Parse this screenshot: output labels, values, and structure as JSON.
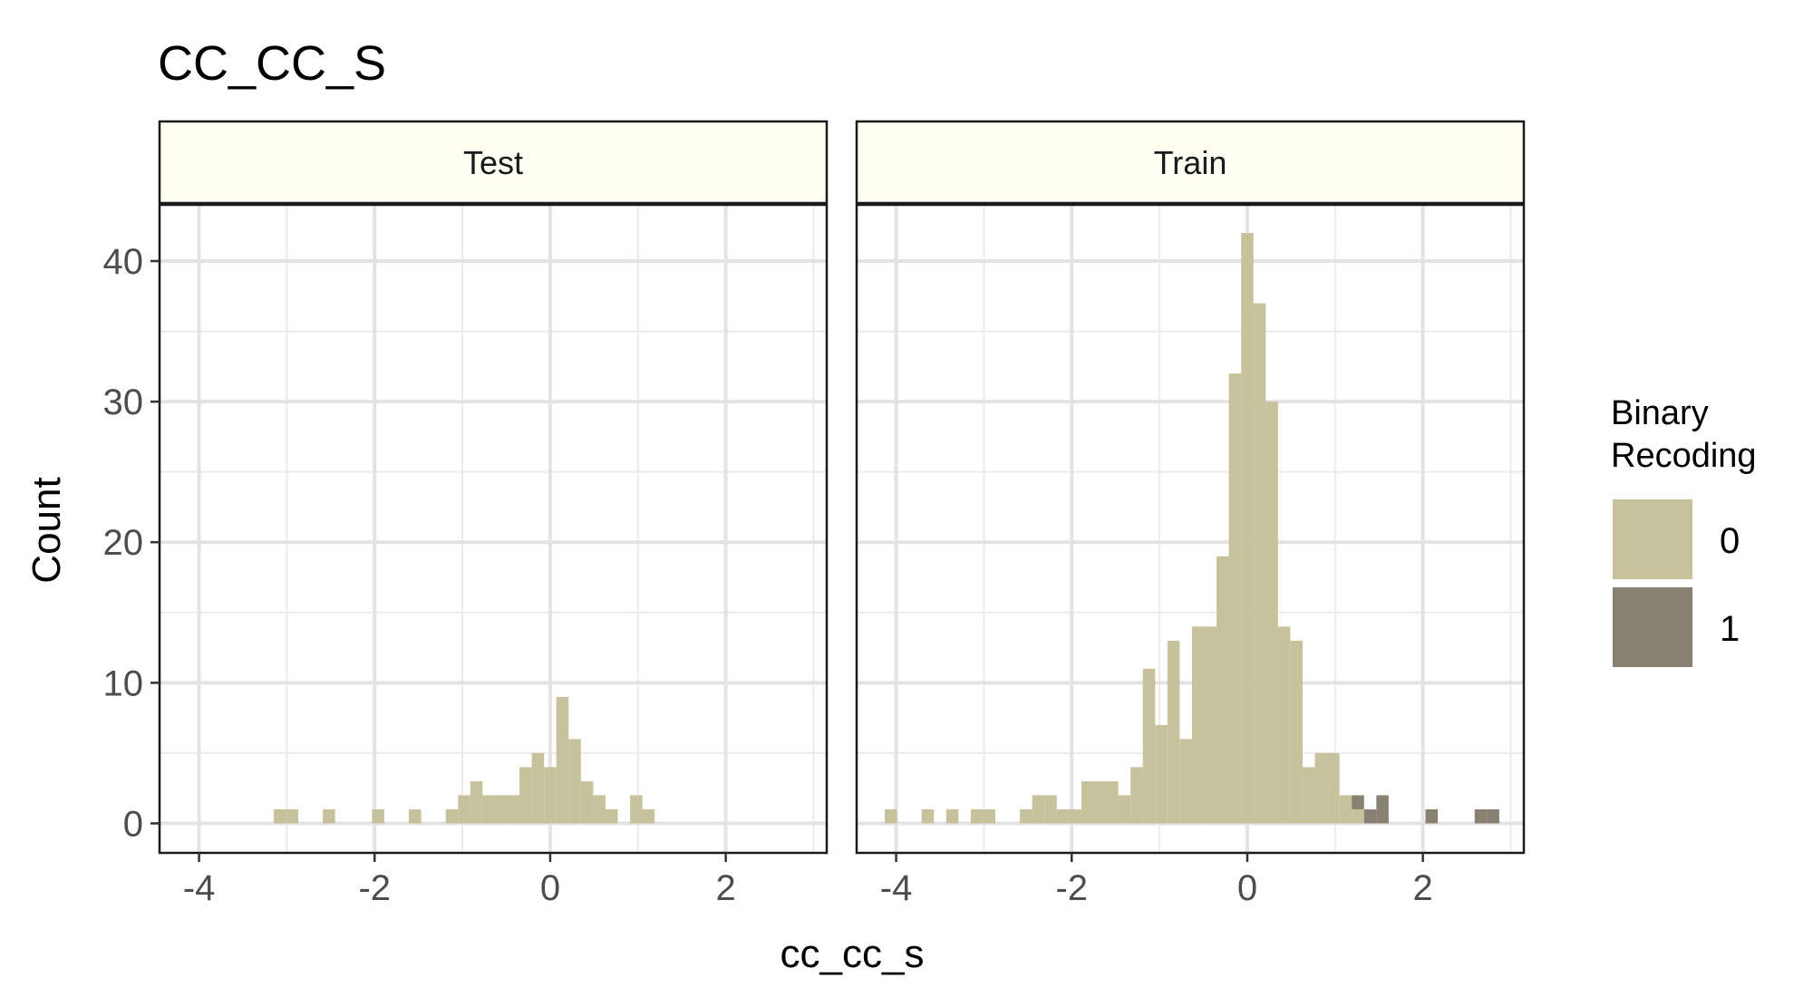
{
  "chart_data": {
    "type": "bar",
    "title": "CC_CC_S",
    "xlabel": "cc_cc_s",
    "ylabel": "Count",
    "xlim": [
      -4.45,
      3.15
    ],
    "ylim": [
      -2.1,
      44
    ],
    "x_ticks": [
      -4,
      -2,
      0,
      2
    ],
    "y_ticks": [
      0,
      10,
      20,
      30,
      40
    ],
    "bin_width": 0.14,
    "grid": true,
    "legend": {
      "title_lines": [
        "Binary",
        "Recoding"
      ],
      "entries": [
        {
          "label": "0",
          "color": "#c8c29c"
        },
        {
          "label": "1",
          "color": "#878073"
        }
      ],
      "position": "right"
    },
    "panels": [
      {
        "strip_label": "Test",
        "bars": [
          {
            "x": -3.08,
            "count": 1,
            "group": "0"
          },
          {
            "x": -2.94,
            "count": 1,
            "group": "0"
          },
          {
            "x": -2.52,
            "count": 1,
            "group": "0"
          },
          {
            "x": -1.96,
            "count": 1,
            "group": "0"
          },
          {
            "x": -1.54,
            "count": 1,
            "group": "0"
          },
          {
            "x": -1.12,
            "count": 1,
            "group": "0"
          },
          {
            "x": -0.98,
            "count": 2,
            "group": "0"
          },
          {
            "x": -0.84,
            "count": 3,
            "group": "0"
          },
          {
            "x": -0.7,
            "count": 2,
            "group": "0"
          },
          {
            "x": -0.56,
            "count": 2,
            "group": "0"
          },
          {
            "x": -0.42,
            "count": 2,
            "group": "0"
          },
          {
            "x": -0.28,
            "count": 4,
            "group": "0"
          },
          {
            "x": -0.14,
            "count": 5,
            "group": "0"
          },
          {
            "x": 0.0,
            "count": 4,
            "group": "0"
          },
          {
            "x": 0.14,
            "count": 9,
            "group": "0"
          },
          {
            "x": 0.28,
            "count": 6,
            "group": "0"
          },
          {
            "x": 0.42,
            "count": 3,
            "group": "0"
          },
          {
            "x": 0.56,
            "count": 2,
            "group": "0"
          },
          {
            "x": 0.7,
            "count": 1,
            "group": "0"
          },
          {
            "x": 0.98,
            "count": 2,
            "group": "0"
          },
          {
            "x": 1.12,
            "count": 1,
            "group": "0"
          }
        ]
      },
      {
        "strip_label": "Train",
        "bars": [
          {
            "x": -4.06,
            "count": 1,
            "group": "0"
          },
          {
            "x": -3.64,
            "count": 1,
            "group": "0"
          },
          {
            "x": -3.36,
            "count": 1,
            "group": "0"
          },
          {
            "x": -3.08,
            "count": 1,
            "group": "0"
          },
          {
            "x": -2.94,
            "count": 1,
            "group": "0"
          },
          {
            "x": -2.52,
            "count": 1,
            "group": "0"
          },
          {
            "x": -2.38,
            "count": 2,
            "group": "0"
          },
          {
            "x": -2.24,
            "count": 2,
            "group": "0"
          },
          {
            "x": -2.1,
            "count": 1,
            "group": "0"
          },
          {
            "x": -1.96,
            "count": 1,
            "group": "0"
          },
          {
            "x": -1.82,
            "count": 3,
            "group": "0"
          },
          {
            "x": -1.68,
            "count": 3,
            "group": "0"
          },
          {
            "x": -1.54,
            "count": 3,
            "group": "0"
          },
          {
            "x": -1.4,
            "count": 2,
            "group": "0"
          },
          {
            "x": -1.26,
            "count": 4,
            "group": "0"
          },
          {
            "x": -1.12,
            "count": 11,
            "group": "0"
          },
          {
            "x": -0.98,
            "count": 7,
            "group": "0"
          },
          {
            "x": -0.84,
            "count": 13,
            "group": "0"
          },
          {
            "x": -0.7,
            "count": 6,
            "group": "0"
          },
          {
            "x": -0.56,
            "count": 14,
            "group": "0"
          },
          {
            "x": -0.42,
            "count": 14,
            "group": "0"
          },
          {
            "x": -0.28,
            "count": 19,
            "group": "0"
          },
          {
            "x": -0.14,
            "count": 32,
            "group": "0"
          },
          {
            "x": 0.0,
            "count": 42,
            "group": "0"
          },
          {
            "x": 0.14,
            "count": 37,
            "group": "0"
          },
          {
            "x": 0.28,
            "count": 30,
            "group": "0"
          },
          {
            "x": 0.42,
            "count": 14,
            "group": "0"
          },
          {
            "x": 0.56,
            "count": 13,
            "group": "0"
          },
          {
            "x": 0.7,
            "count": 4,
            "group": "0"
          },
          {
            "x": 0.84,
            "count": 5,
            "group": "0"
          },
          {
            "x": 0.98,
            "count": 5,
            "group": "0"
          },
          {
            "x": 1.12,
            "count": 2,
            "group": "0"
          },
          {
            "x": 1.26,
            "count": 1,
            "group": "0"
          },
          {
            "x": 1.26,
            "count": 1,
            "group": "1"
          },
          {
            "x": 1.4,
            "count": 1,
            "group": "1"
          },
          {
            "x": 1.54,
            "count": 2,
            "group": "1"
          },
          {
            "x": 2.1,
            "count": 1,
            "group": "1"
          },
          {
            "x": 2.66,
            "count": 1,
            "group": "1"
          },
          {
            "x": 2.8,
            "count": 1,
            "group": "1"
          }
        ]
      }
    ]
  }
}
